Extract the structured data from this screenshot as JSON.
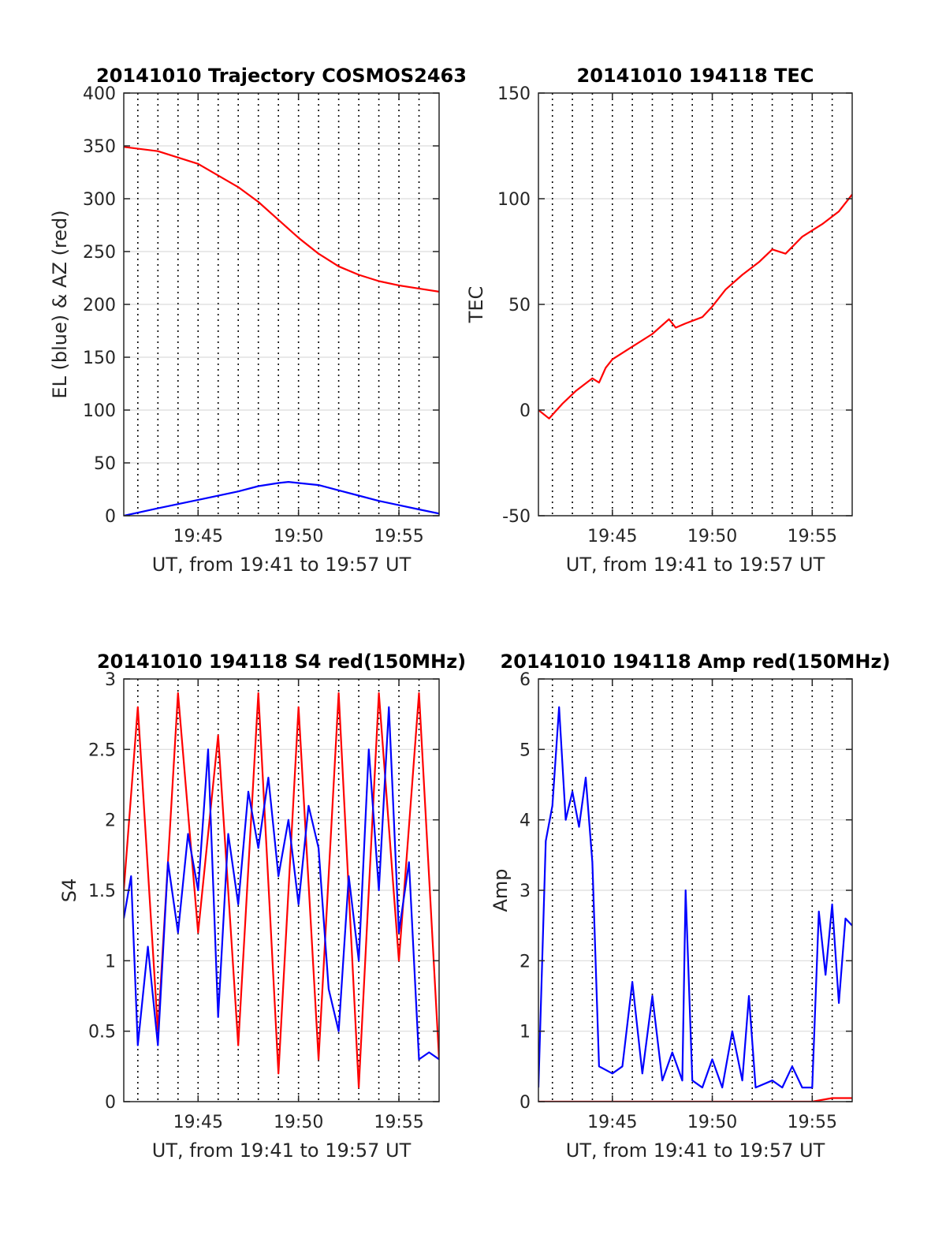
{
  "figure": {
    "date": "20141010",
    "time_range_label": "UT, from 19:41 to 19:57 UT",
    "background": "#ffffff"
  },
  "colors": {
    "red_series": "#ff0000",
    "blue_series": "#0000ff",
    "grid_solid": "#dcdcdc",
    "grid_dotted": "#000000",
    "axis": "#262626"
  },
  "chart_data": [
    {
      "id": "trajectory",
      "type": "line",
      "title": "20141010 Trajectory COSMOS2463",
      "xlabel": "UT, from 19:41 to 19:57 UT",
      "ylabel": "EL (blue) & AZ (red)",
      "xlim": [
        "19:41:18",
        "19:57:00"
      ],
      "ylim": [
        0,
        400
      ],
      "yticks": [
        0,
        50,
        100,
        150,
        200,
        250,
        300,
        350,
        400
      ],
      "ytick_labels": [
        "0",
        "50",
        "100",
        "150",
        "200",
        "250",
        "300",
        "350",
        "400"
      ],
      "xticks": [
        "19:45",
        "19:50",
        "19:55"
      ],
      "grid": "on",
      "series": [
        {
          "name": "AZ (red)",
          "color": "#ff0000",
          "x": [
            "19:41:18",
            "19:43:00",
            "19:45:00",
            "19:47:00",
            "19:48:00",
            "19:49:00",
            "19:50:00",
            "19:51:00",
            "19:52:00",
            "19:53:00",
            "19:54:00",
            "19:55:00",
            "19:56:00",
            "19:57:00"
          ],
          "y": [
            349,
            345,
            333,
            311,
            297,
            280,
            263,
            248,
            236,
            228,
            222,
            218,
            215,
            212
          ]
        },
        {
          "name": "EL (blue)",
          "color": "#0000ff",
          "x": [
            "19:41:18",
            "19:43:00",
            "19:45:00",
            "19:47:00",
            "19:48:00",
            "19:49:00",
            "19:49:30",
            "19:50:00",
            "19:51:00",
            "19:52:00",
            "19:53:00",
            "19:54:00",
            "19:55:00",
            "19:56:00",
            "19:57:00"
          ],
          "y": [
            0,
            7,
            15,
            23,
            28,
            31,
            32,
            31,
            29,
            24,
            19,
            14,
            10,
            6,
            2
          ]
        }
      ]
    },
    {
      "id": "tec",
      "type": "line",
      "title": "20141010 194118 TEC",
      "xlabel": "UT, from 19:41 to 19:57 UT",
      "ylabel": "TEC",
      "xlim": [
        "19:41:18",
        "19:57:00"
      ],
      "ylim": [
        -50,
        150
      ],
      "yticks": [
        -50,
        0,
        50,
        100,
        150
      ],
      "ytick_labels": [
        "-50",
        "0",
        "50",
        "100",
        "150"
      ],
      "xticks": [
        "19:45",
        "19:50",
        "19:55"
      ],
      "grid": "on",
      "series": [
        {
          "name": "TEC",
          "color": "#ff0000",
          "x": [
            "19:41:18",
            "19:41:50",
            "19:42:30",
            "19:43:10",
            "19:44:00",
            "19:44:20",
            "19:44:40",
            "19:45:00",
            "19:46:00",
            "19:47:00",
            "19:47:50",
            "19:48:10",
            "19:48:40",
            "19:49:30",
            "19:50:00",
            "19:50:40",
            "19:51:30",
            "19:52:20",
            "19:53:00",
            "19:53:40",
            "19:54:30",
            "19:55:30",
            "19:56:20",
            "19:57:00"
          ],
          "y": [
            0,
            -4,
            3,
            9,
            15,
            13,
            20,
            24,
            30,
            36,
            43,
            39,
            41,
            44,
            49,
            57,
            64,
            70,
            76,
            74,
            82,
            88,
            94,
            102
          ]
        }
      ]
    },
    {
      "id": "s4",
      "type": "line",
      "title": "20141010 194118 S4 red(150MHz)",
      "xlabel": "UT, from 19:41 to 19:57 UT",
      "ylabel": "S4",
      "xlim": [
        "19:41:18",
        "19:57:00"
      ],
      "ylim": [
        0,
        3
      ],
      "yticks": [
        0,
        0.5,
        1,
        1.5,
        2,
        2.5,
        3
      ],
      "ytick_labels": [
        "0",
        "0.5",
        "1",
        "1.5",
        "2",
        "2.5",
        "3"
      ],
      "xticks": [
        "19:45",
        "19:50",
        "19:55"
      ],
      "grid": "on",
      "series": [
        {
          "name": "S4 red",
          "color": "#ff0000",
          "x": [
            "19:41:18",
            "19:42:00",
            "19:43:00",
            "19:44:00",
            "19:45:00",
            "19:46:00",
            "19:47:00",
            "19:48:00",
            "19:49:00",
            "19:50:00",
            "19:51:00",
            "19:52:00",
            "19:53:00",
            "19:54:00",
            "19:55:00",
            "19:56:00",
            "19:57:00"
          ],
          "y": [
            1.5,
            2.8,
            0.5,
            2.9,
            1.2,
            2.6,
            0.4,
            2.9,
            0.2,
            2.8,
            0.3,
            2.9,
            0.1,
            2.9,
            1.0,
            2.9,
            0.3
          ]
        },
        {
          "name": "S4 blue",
          "color": "#0000ff",
          "x": [
            "19:41:18",
            "19:41:40",
            "19:42:00",
            "19:42:30",
            "19:43:00",
            "19:43:30",
            "19:44:00",
            "19:44:30",
            "19:45:00",
            "19:45:30",
            "19:46:00",
            "19:46:30",
            "19:47:00",
            "19:47:30",
            "19:48:00",
            "19:48:30",
            "19:49:00",
            "19:49:30",
            "19:50:00",
            "19:50:30",
            "19:51:00",
            "19:51:30",
            "19:52:00",
            "19:52:30",
            "19:53:00",
            "19:53:30",
            "19:54:00",
            "19:54:30",
            "19:55:00",
            "19:55:30",
            "19:56:00",
            "19:56:30",
            "19:57:00"
          ],
          "y": [
            1.3,
            1.6,
            0.4,
            1.1,
            0.4,
            1.7,
            1.2,
            1.9,
            1.5,
            2.5,
            0.6,
            1.9,
            1.4,
            2.2,
            1.8,
            2.3,
            1.6,
            2.0,
            1.4,
            2.1,
            1.8,
            0.8,
            0.5,
            1.6,
            1.0,
            2.5,
            1.5,
            2.8,
            1.2,
            1.7,
            0.3,
            0.35,
            0.3
          ]
        }
      ]
    },
    {
      "id": "amp",
      "type": "line",
      "title": "20141010 194118 Amp red(150MHz)",
      "xlabel": "UT, from 19:41 to 19:57 UT",
      "ylabel": "Amp",
      "xlim": [
        "19:41:18",
        "19:57:00"
      ],
      "ylim": [
        0,
        6
      ],
      "yticks": [
        0,
        1,
        2,
        3,
        4,
        5,
        6
      ],
      "ytick_labels": [
        "0",
        "1",
        "2",
        "3",
        "4",
        "5",
        "6"
      ],
      "xticks": [
        "19:45",
        "19:50",
        "19:55"
      ],
      "grid": "on",
      "series": [
        {
          "name": "Amp blue",
          "color": "#0000ff",
          "x": [
            "19:41:18",
            "19:41:40",
            "19:42:00",
            "19:42:20",
            "19:42:40",
            "19:43:00",
            "19:43:20",
            "19:43:40",
            "19:44:00",
            "19:44:20",
            "19:45:00",
            "19:45:30",
            "19:46:00",
            "19:46:30",
            "19:47:00",
            "19:47:30",
            "19:48:00",
            "19:48:30",
            "19:48:40",
            "19:49:00",
            "19:49:30",
            "19:50:00",
            "19:50:30",
            "19:51:00",
            "19:51:30",
            "19:51:50",
            "19:52:10",
            "19:53:00",
            "19:53:30",
            "19:54:00",
            "19:54:30",
            "19:55:00",
            "19:55:20",
            "19:55:40",
            "19:56:00",
            "19:56:20",
            "19:56:40",
            "19:57:00"
          ],
          "y": [
            0.2,
            3.7,
            4.2,
            5.6,
            4.0,
            4.4,
            3.9,
            4.6,
            3.4,
            0.5,
            0.4,
            0.5,
            1.7,
            0.4,
            1.5,
            0.3,
            0.7,
            0.3,
            3.0,
            0.3,
            0.2,
            0.6,
            0.2,
            1.0,
            0.3,
            1.5,
            0.2,
            0.3,
            0.2,
            0.5,
            0.2,
            0.2,
            2.7,
            1.8,
            2.8,
            1.4,
            2.6,
            2.5
          ]
        },
        {
          "name": "Amp red",
          "color": "#ff0000",
          "x": [
            "19:41:18",
            "19:55:00",
            "19:56:00",
            "19:57:00"
          ],
          "y": [
            0,
            0,
            0.05,
            0.05
          ]
        }
      ]
    }
  ]
}
